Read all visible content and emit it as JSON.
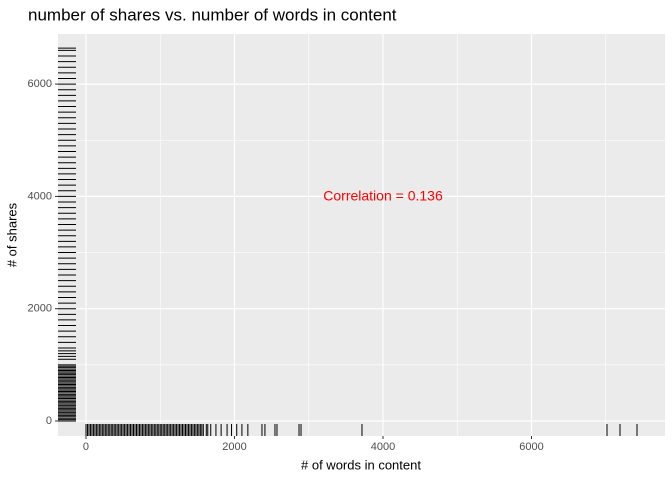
{
  "chart_data": {
    "type": "rug",
    "title": "number of shares vs. number of words in content",
    "x_label": "# of words in content",
    "y_label": "# of shares",
    "annotation": "Correlation = 0.136",
    "annotation_color": "#ff0000",
    "color": "#000000",
    "xlim": [
      -377,
      7798
    ],
    "ylim": [
      -267,
      6892
    ],
    "xticks": [
      0,
      2000,
      4000,
      6000
    ],
    "yticks": [
      0,
      2000,
      4000,
      6000
    ],
    "xminor": [
      1000,
      3000,
      5000,
      7000
    ],
    "yminor": [
      1000,
      3000,
      5000
    ],
    "grid": true,
    "x": [
      0,
      20,
      40,
      60,
      80,
      100,
      120,
      140,
      160,
      180,
      200,
      220,
      240,
      260,
      280,
      300,
      320,
      340,
      360,
      380,
      400,
      420,
      440,
      460,
      480,
      500,
      520,
      540,
      560,
      580,
      600,
      620,
      640,
      660,
      680,
      700,
      720,
      740,
      760,
      780,
      800,
      820,
      840,
      860,
      880,
      900,
      920,
      940,
      960,
      980,
      1000,
      1020,
      1040,
      1060,
      1080,
      1100,
      1120,
      1140,
      1160,
      1180,
      1200,
      1220,
      1240,
      1260,
      1280,
      1300,
      1320,
      1340,
      1360,
      1380,
      1400,
      1420,
      1440,
      1460,
      1480,
      1500,
      1520,
      1540,
      1560,
      1580,
      1620,
      1640,
      1680,
      1750,
      1820,
      1900,
      1960,
      2030,
      2100,
      2180,
      2370,
      2410,
      2545,
      2572,
      2869,
      2896,
      3717,
      7017,
      7192,
      7421
    ],
    "values": [
      0,
      25,
      50,
      75,
      100,
      125,
      150,
      175,
      200,
      225,
      250,
      275,
      300,
      325,
      350,
      375,
      400,
      425,
      450,
      475,
      500,
      525,
      550,
      575,
      600,
      625,
      650,
      675,
      700,
      725,
      750,
      775,
      800,
      825,
      850,
      875,
      900,
      925,
      950,
      975,
      1000,
      1100,
      1200,
      1300,
      1400,
      1500,
      1600,
      1700,
      1800,
      1900,
      2000,
      2100,
      2200,
      2300,
      2400,
      2500,
      2600,
      2700,
      2800,
      2900,
      3000,
      3100,
      3200,
      3300,
      3400,
      3500,
      3600,
      3700,
      3800,
      3900,
      4000,
      4100,
      4200,
      4300,
      4400,
      4500,
      4600,
      4700,
      4800,
      4900,
      5000,
      5100,
      5200,
      5300,
      5400,
      5500,
      5600,
      5700,
      5800,
      5900,
      6000,
      6100,
      6200,
      6300,
      6400,
      6500,
      6600,
      1150,
      1250,
      6640
    ]
  }
}
